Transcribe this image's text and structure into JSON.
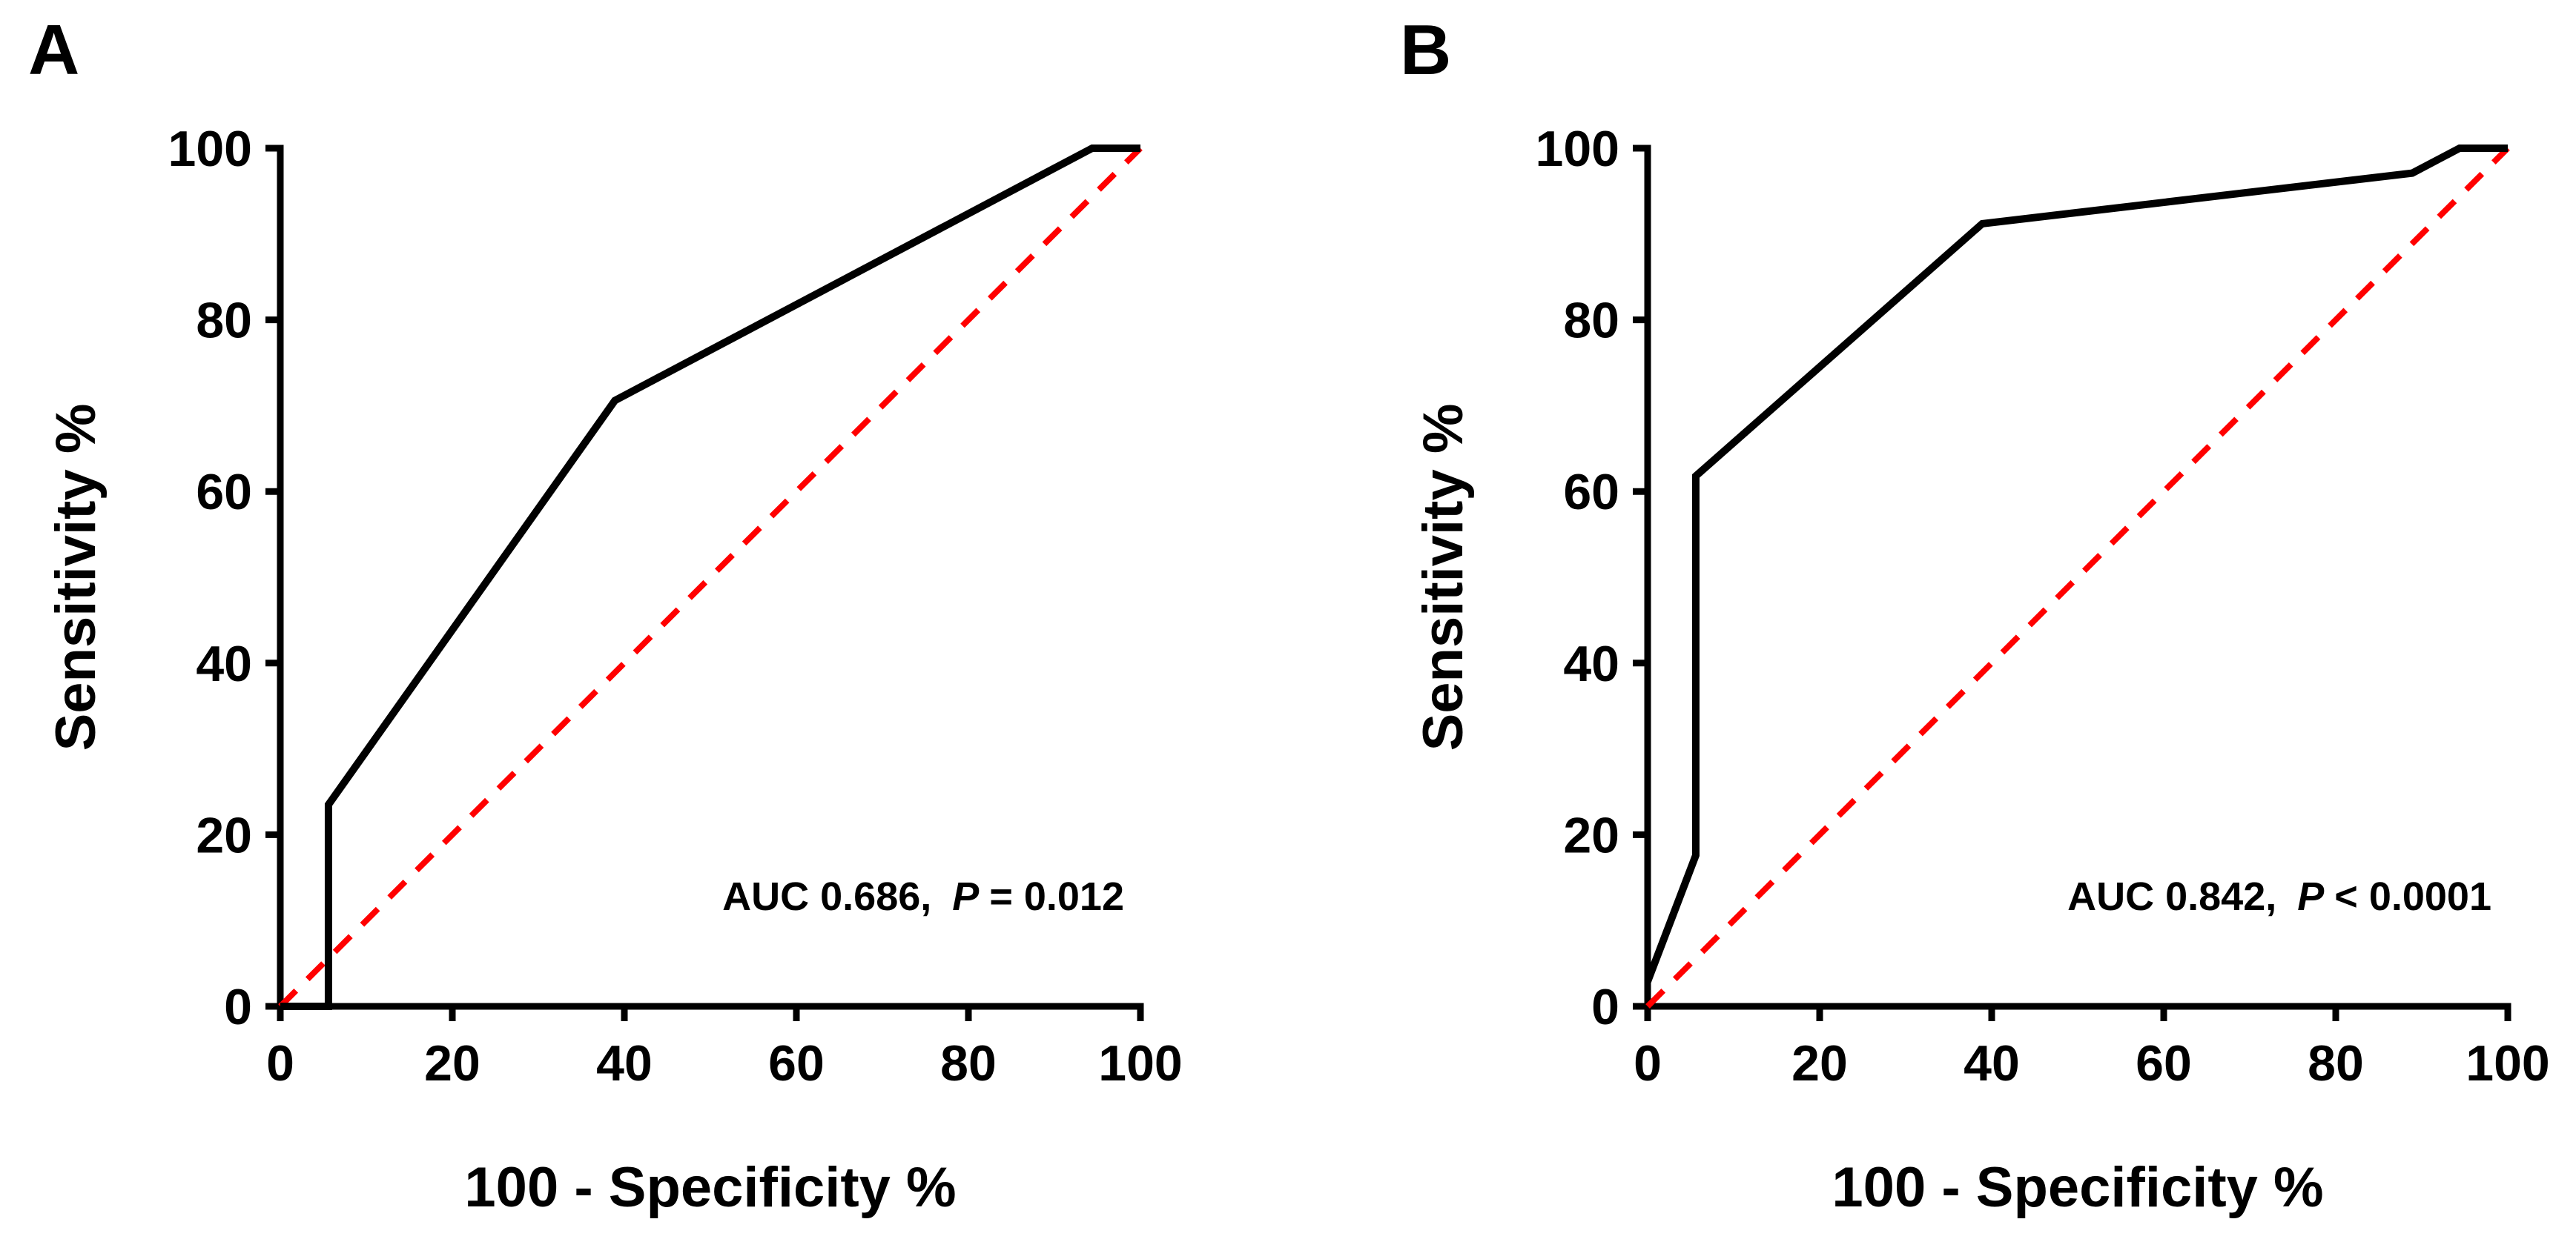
{
  "chart_data": [
    {
      "type": "line",
      "panel_label": "A",
      "xlabel": "100 - Specificity %",
      "ylabel": "Sensitivity %",
      "xlim": [
        0,
        100
      ],
      "ylim": [
        0,
        100
      ],
      "xticks": [
        "0",
        "20",
        "40",
        "60",
        "80",
        "100"
      ],
      "yticks": [
        "0",
        "20",
        "40",
        "60",
        "80",
        "100"
      ],
      "annotation": {
        "prefix": "AUC 0.686,",
        "p_symbol": "P",
        "p_value": "= 0.012"
      },
      "series": [
        {
          "role": "roc",
          "color": "#000000",
          "x": [
            0,
            0,
            5.6,
            5.6,
            38.9,
            94.4,
            100
          ],
          "y": [
            0,
            0,
            0,
            23.5,
            70.6,
            100,
            100
          ]
        },
        {
          "role": "reference",
          "color": "#ff0000",
          "x": [
            0,
            100
          ],
          "y": [
            0,
            100
          ]
        }
      ]
    },
    {
      "type": "line",
      "panel_label": "B",
      "xlabel": "100 - Specificity %",
      "ylabel": "Sensitivity %",
      "xlim": [
        0,
        100
      ],
      "ylim": [
        0,
        100
      ],
      "xticks": [
        "0",
        "20",
        "40",
        "60",
        "80",
        "100"
      ],
      "yticks": [
        "0",
        "20",
        "40",
        "60",
        "80",
        "100"
      ],
      "annotation": {
        "prefix": "AUC 0.842,",
        "p_symbol": "P",
        "p_value": "< 0.0001"
      },
      "series": [
        {
          "role": "roc",
          "color": "#000000",
          "x": [
            0,
            5.6,
            5.6,
            38.9,
            88.9,
            94.4,
            100
          ],
          "y": [
            2.9,
            17.6,
            61.8,
            91.2,
            97.1,
            100,
            100
          ]
        },
        {
          "role": "reference",
          "color": "#ff0000",
          "x": [
            0,
            100
          ],
          "y": [
            0,
            100
          ]
        }
      ]
    }
  ]
}
